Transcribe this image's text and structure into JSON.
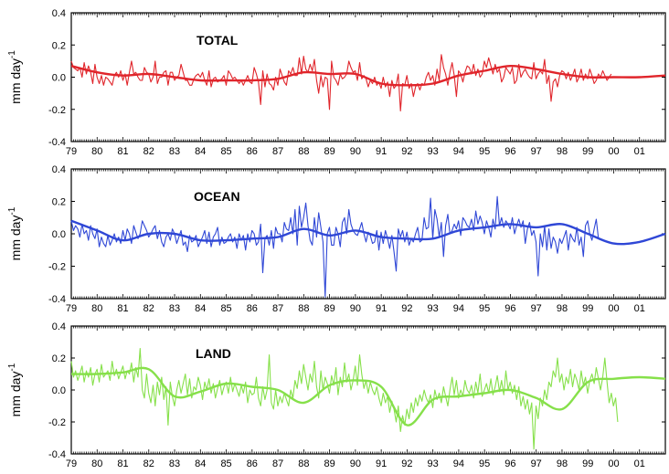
{
  "chart_data": [
    {
      "type": "line",
      "title": "TOTAL",
      "ylabel": "mm day",
      "ylabel_superscript": "-1",
      "ylim": [
        -0.4,
        0.4
      ],
      "y_ticks": [
        "-0.4",
        "-0.2",
        "0.0",
        "0.2",
        "0.4"
      ],
      "x_ticks": [
        "79",
        "80",
        "81",
        "82",
        "83",
        "84",
        "85",
        "86",
        "87",
        "88",
        "89",
        "90",
        "91",
        "92",
        "93",
        "94",
        "95",
        "96",
        "97",
        "98",
        "99",
        "00",
        "01"
      ],
      "xlim": [
        1979,
        2002
      ],
      "color": "#e0252b",
      "series": [
        {
          "style": "monthly",
          "x_start": 1979.0,
          "step": 0.0833,
          "values": [
            0.1,
            0.06,
            0.05,
            0.04,
            0.06,
            0.0,
            0.09,
            0.02,
            0.07,
            0.03,
            -0.04,
            0.08,
            0.0,
            -0.04,
            0.01,
            -0.05,
            0.0,
            -0.01,
            -0.03,
            -0.05,
            0.01,
            0.03,
            0.0,
            0.04,
            -0.02,
            0.02,
            -0.05,
            0.03,
            0.1,
            0.02,
            0.03,
            0.0,
            -0.02,
            -0.02,
            0.06,
            0.03,
            0.02,
            -0.03,
            0.0,
            0.1,
            -0.04,
            0.0,
            0.0,
            0.03,
            0.04,
            -0.05,
            0.03,
            0.03,
            -0.02,
            0.0,
            0.01,
            0.08,
            0.03,
            -0.02,
            -0.02,
            -0.05,
            -0.05,
            -0.01,
            0.01,
            0.02,
            0.0,
            0.03,
            -0.02,
            -0.05,
            0.04,
            -0.06,
            -0.01,
            0.0,
            -0.03,
            -0.02,
            -0.01,
            0.01,
            -0.05,
            0.04,
            0.02,
            -0.01,
            0.0,
            -0.02,
            -0.04,
            -0.02,
            -0.05,
            -0.02,
            0.01,
            -0.03,
            -0.04,
            0.06,
            0.02,
            -0.03,
            -0.17,
            0.04,
            -0.06,
            0.02,
            -0.04,
            -0.05,
            -0.08,
            0.0,
            -0.05,
            0.05,
            0.01,
            -0.03,
            -0.05,
            0.04,
            0.02,
            0.06,
            0.01,
            0.01,
            0.12,
            0.02,
            0.13,
            0.05,
            0.03,
            0.08,
            0.04,
            0.11,
            -0.02,
            -0.1,
            0.01,
            -0.06,
            0.0,
            -0.01,
            -0.2,
            0.1,
            0.0,
            -0.02,
            -0.05,
            0.02,
            -0.01,
            0.0,
            0.02,
            0.1,
            0.06,
            0.03,
            0.04,
            -0.02,
            0.09,
            -0.01,
            0.01,
            -0.01,
            -0.06,
            -0.02,
            -0.04,
            0.0,
            -0.05,
            -0.03,
            -0.07,
            0.0,
            -0.06,
            -0.03,
            -0.12,
            -0.02,
            -0.07,
            -0.05,
            0.02,
            -0.21,
            -0.04,
            -0.05,
            0.01,
            -0.07,
            -0.04,
            -0.12,
            -0.06,
            -0.04,
            -0.08,
            -0.04,
            -0.05,
            0.0,
            0.03,
            -0.02,
            0.01,
            -0.05,
            0.05,
            -0.02,
            0.14,
            0.06,
            0.02,
            -0.05,
            0.03,
            0.09,
            0.01,
            -0.12,
            0.04,
            0.02,
            -0.03,
            0.03,
            0.07,
            0.06,
            0.02,
            0.08,
            0.01,
            0.05,
            0.0,
            0.02,
            0.1,
            0.06,
            0.12,
            0.07,
            0.02,
            0.08,
            0.03,
            0.05,
            -0.03,
            0.0,
            0.06,
            0.04,
            0.02,
            0.06,
            -0.04,
            -0.02,
            0.08,
            0.0,
            0.03,
            0.05,
            0.02,
            0.0,
            -0.01,
            0.09,
            -0.01,
            0.02,
            0.04,
            0.02,
            0.11,
            -0.04,
            0.01,
            -0.15,
            -0.03,
            -0.01,
            -0.06,
            0.01,
            0.04,
            0.03,
            -0.01,
            0.03,
            -0.02,
            0.01,
            0.05,
            -0.03,
            0.0,
            0.05,
            -0.02,
            0.02,
            -0.01,
            0.05,
            0.01,
            -0.04,
            -0.02,
            0.02,
            0.0,
            0.04,
            0.01,
            -0.02,
            0.0,
            0.02
          ]
        },
        {
          "style": "smoothed",
          "x": [
            1979,
            1980,
            1981,
            1982,
            1983,
            1984,
            1985,
            1986,
            1987,
            1988,
            1989,
            1990,
            1991,
            1992,
            1993,
            1994,
            1995,
            1996,
            1997,
            1998,
            1999,
            2000,
            2001,
            2002
          ],
          "values": [
            0.07,
            0.03,
            0.01,
            0.02,
            0.0,
            -0.02,
            -0.02,
            -0.02,
            -0.01,
            0.03,
            0.02,
            0.02,
            -0.04,
            -0.05,
            -0.04,
            0.01,
            0.04,
            0.07,
            0.05,
            0.02,
            0.0,
            0.0,
            0.0,
            0.01
          ]
        }
      ]
    },
    {
      "type": "line",
      "title": "OCEAN",
      "ylabel": "mm day",
      "ylabel_superscript": "-1",
      "ylim": [
        -0.4,
        0.4
      ],
      "y_ticks": [
        "-0.4",
        "-0.2",
        "0.0",
        "0.2",
        "0.4"
      ],
      "x_ticks": [
        "79",
        "80",
        "81",
        "82",
        "83",
        "84",
        "85",
        "86",
        "87",
        "88",
        "89",
        "90",
        "91",
        "92",
        "93",
        "94",
        "95",
        "96",
        "97",
        "98",
        "99",
        "00",
        "01"
      ],
      "xlim": [
        1979,
        2002
      ],
      "color": "#2f47d6",
      "series": [
        {
          "style": "monthly",
          "x_start": 1979.0,
          "step": 0.0833,
          "values": [
            0.08,
            0.02,
            0.05,
            0.03,
            -0.02,
            0.06,
            0.0,
            0.02,
            -0.04,
            0.05,
            0.0,
            -0.03,
            0.03,
            -0.08,
            -0.02,
            -0.06,
            -0.08,
            -0.01,
            -0.07,
            -0.04,
            0.0,
            -0.05,
            -0.02,
            -0.06,
            0.02,
            -0.04,
            0.03,
            0.0,
            -0.06,
            0.05,
            0.01,
            -0.03,
            0.0,
            0.08,
            0.05,
            0.02,
            -0.02,
            0.0,
            0.03,
            0.05,
            -0.03,
            0.02,
            -0.05,
            -0.08,
            -0.02,
            0.0,
            -0.04,
            0.03,
            0.0,
            -0.06,
            -0.02,
            0.02,
            -0.07,
            -0.05,
            -0.11,
            -0.01,
            -0.05,
            -0.04,
            -0.01,
            -0.08,
            -0.05,
            -0.02,
            0.02,
            -0.06,
            0.01,
            -0.08,
            -0.02,
            0.0,
            0.04,
            -0.07,
            -0.02,
            -0.06,
            -0.05,
            -0.02,
            0.0,
            -0.05,
            -0.02,
            -0.09,
            0.0,
            -0.04,
            -0.01,
            -0.1,
            0.0,
            -0.05,
            0.02,
            0.0,
            -0.07,
            -0.05,
            0.06,
            -0.24,
            -0.03,
            -0.01,
            -0.07,
            0.02,
            -0.09,
            0.04,
            0.0,
            0.0,
            -0.05,
            0.07,
            0.03,
            0.02,
            0.1,
            0.0,
            0.15,
            -0.07,
            0.17,
            0.04,
            0.1,
            0.19,
            0.05,
            -0.04,
            -0.07,
            0.1,
            -0.02,
            0.13,
            0.04,
            -0.05,
            -0.39,
            0.0,
            0.04,
            -0.07,
            -0.07,
            0.04,
            0.0,
            -0.08,
            0.07,
            0.1,
            0.0,
            0.15,
            0.06,
            0.02,
            0.0,
            -0.01,
            0.03,
            0.07,
            0.0,
            -0.05,
            0.01,
            -0.01,
            -0.06,
            -0.05,
            0.02,
            -0.1,
            0.01,
            -0.06,
            0.02,
            -0.03,
            -0.09,
            -0.01,
            -0.11,
            -0.23,
            0.03,
            -0.02,
            0.02,
            -0.05,
            0.01,
            -0.07,
            -0.03,
            -0.05,
            0.0,
            0.04,
            -0.05,
            -0.04,
            0.1,
            0.03,
            0.04,
            0.22,
            -0.03,
            0.15,
            0.09,
            -0.02,
            0.07,
            -0.14,
            0.05,
            0.12,
            0.0,
            0.02,
            0.06,
            0.03,
            0.08,
            -0.01,
            0.1,
            0.08,
            0.05,
            0.04,
            0.09,
            0.02,
            0.14,
            0.06,
            0.11,
            0.07,
            0.0,
            0.08,
            0.04,
            -0.02,
            0.09,
            0.03,
            0.23,
            0.05,
            0.1,
            0.04,
            0.08,
            0.06,
            0.03,
            0.1,
            0.0,
            0.05,
            0.09,
            0.04,
            0.08,
            -0.06,
            0.03,
            0.07,
            -0.01,
            0.02,
            -0.05,
            -0.26,
            0.0,
            -0.08,
            0.05,
            -0.1,
            0.03,
            -0.09,
            -0.02,
            -0.05,
            -0.12,
            -0.03,
            -0.06,
            -0.02,
            0.02,
            -0.1,
            0.0,
            -0.03,
            -0.05,
            0.04,
            -0.07,
            -0.02,
            -0.14,
            0.05,
            0.08,
            0.0,
            -0.04,
            0.03,
            0.09,
            -0.03
          ]
        },
        {
          "style": "smoothed",
          "x": [
            1979,
            1980,
            1981,
            1982,
            1983,
            1984,
            1985,
            1986,
            1987,
            1988,
            1989,
            1990,
            1991,
            1992,
            1993,
            1994,
            1995,
            1996,
            1997,
            1998,
            1999,
            2000,
            2001,
            2002
          ],
          "values": [
            0.08,
            0.02,
            -0.04,
            0.0,
            0.0,
            -0.04,
            -0.04,
            -0.03,
            -0.02,
            0.03,
            -0.01,
            0.02,
            -0.02,
            -0.03,
            -0.03,
            0.02,
            0.04,
            0.06,
            0.04,
            0.06,
            0.0,
            -0.06,
            -0.05,
            0.0
          ]
        }
      ]
    },
    {
      "type": "line",
      "title": "LAND",
      "ylabel": "mm day",
      "ylabel_superscript": "-1",
      "ylim": [
        -0.4,
        0.4
      ],
      "y_ticks": [
        "-0.4",
        "-0.2",
        "0.0",
        "0.2",
        "0.4"
      ],
      "x_ticks": [
        "79",
        "80",
        "81",
        "82",
        "83",
        "84",
        "85",
        "86",
        "87",
        "88",
        "89",
        "90",
        "91",
        "92",
        "93",
        "94",
        "95",
        "96",
        "97",
        "98",
        "99",
        "00",
        "01"
      ],
      "xlim": [
        1979,
        2002
      ],
      "color": "#86e04a",
      "series": [
        {
          "style": "monthly",
          "x_start": 1979.0,
          "step": 0.0833,
          "values": [
            0.18,
            0.08,
            0.12,
            0.06,
            0.1,
            0.15,
            0.05,
            0.12,
            0.08,
            0.14,
            0.03,
            0.1,
            0.13,
            0.05,
            0.16,
            0.08,
            0.1,
            0.12,
            0.06,
            0.18,
            0.09,
            0.13,
            0.07,
            0.11,
            0.15,
            0.07,
            0.12,
            0.1,
            0.17,
            0.05,
            0.14,
            0.08,
            0.26,
            0.0,
            -0.05,
            0.1,
            -0.02,
            -0.08,
            0.03,
            -0.1,
            0.05,
            -0.03,
            0.08,
            -0.06,
            0.02,
            -0.22,
            0.05,
            -0.04,
            -0.1,
            0.0,
            0.06,
            -0.02,
            0.04,
            0.1,
            -0.03,
            0.07,
            -0.05,
            0.02,
            0.0,
            0.08,
            0.03,
            -0.06,
            0.05,
            0.0,
            0.07,
            -0.02,
            0.04,
            -0.05,
            0.01,
            0.06,
            -0.03,
            0.02,
            0.05,
            -0.02,
            0.08,
            -0.01,
            0.04,
            0.0,
            -0.04,
            0.03,
            -0.02,
            0.05,
            -0.08,
            0.0,
            -0.03,
            -0.02,
            0.08,
            -0.05,
            -0.1,
            0.02,
            -0.06,
            0.0,
            0.22,
            -0.08,
            -0.12,
            0.0,
            -0.1,
            -0.04,
            -0.08,
            -0.02,
            -0.06,
            -0.1,
            0.0,
            -0.05,
            0.06,
            0.01,
            0.12,
            0.04,
            0.16,
            0.08,
            0.0,
            0.1,
            0.05,
            0.18,
            0.02,
            -0.05,
            0.12,
            0.0,
            0.08,
            0.04,
            -0.02,
            0.09,
            0.03,
            0.14,
            -0.03,
            0.08,
            0.02,
            0.17,
            0.05,
            0.1,
            0.0,
            0.06,
            0.15,
            0.03,
            0.22,
            0.1,
            0.01,
            0.06,
            -0.02,
            0.05,
            0.0,
            -0.03,
            0.02,
            -0.05,
            -0.1,
            -0.02,
            -0.08,
            -0.04,
            -0.14,
            -0.07,
            -0.12,
            -0.2,
            -0.1,
            -0.26,
            -0.16,
            -0.22,
            -0.12,
            -0.18,
            -0.08,
            -0.14,
            -0.05,
            -0.1,
            -0.03,
            -0.07,
            0.0,
            -0.05,
            -0.08,
            -0.03,
            -0.11,
            0.0,
            -0.06,
            -0.02,
            -0.08,
            0.02,
            -0.04,
            -0.1,
            0.0,
            0.08,
            -0.03,
            0.06,
            -0.05,
            0.0,
            -0.04,
            0.06,
            0.0,
            -0.02,
            0.03,
            -0.05,
            0.05,
            -0.02,
            0.1,
            -0.04,
            0.0,
            0.04,
            -0.02,
            0.07,
            -0.03,
            0.02,
            0.09,
            -0.01,
            0.06,
            -0.03,
            0.12,
            0.0,
            0.05,
            -0.02,
            0.03,
            -0.06,
            0.02,
            -0.1,
            -0.04,
            -0.12,
            -0.06,
            -0.15,
            -0.08,
            -0.37,
            -0.1,
            -0.18,
            -0.05,
            -0.1,
            0.0,
            -0.06,
            0.05,
            0.02,
            0.12,
            0.08,
            0.2,
            0.05,
            0.1,
            0.0,
            0.08,
            0.04,
            0.13,
            0.02,
            0.1,
            0.06,
            0.0,
            0.12,
            0.03,
            0.08,
            -0.02,
            0.06,
            0.1,
            0.04,
            0.14,
            0.07,
            0.0,
            0.08,
            0.2,
            0.05,
            -0.08,
            -0.02,
            -0.1,
            -0.05,
            -0.2
          ]
        },
        {
          "style": "smoothed",
          "x": [
            1979,
            1980,
            1981,
            1982,
            1983,
            1984,
            1985,
            1986,
            1987,
            1988,
            1989,
            1990,
            1991,
            1992,
            1993,
            1994,
            1995,
            1996,
            1997,
            1998,
            1999,
            2000,
            2001,
            2002
          ],
          "values": [
            0.1,
            0.1,
            0.11,
            0.13,
            -0.04,
            -0.01,
            0.04,
            0.02,
            0.0,
            -0.08,
            0.03,
            0.06,
            0.02,
            -0.22,
            -0.06,
            -0.04,
            -0.02,
            0.0,
            -0.05,
            -0.12,
            0.05,
            0.07,
            0.08,
            0.07
          ]
        }
      ]
    }
  ]
}
